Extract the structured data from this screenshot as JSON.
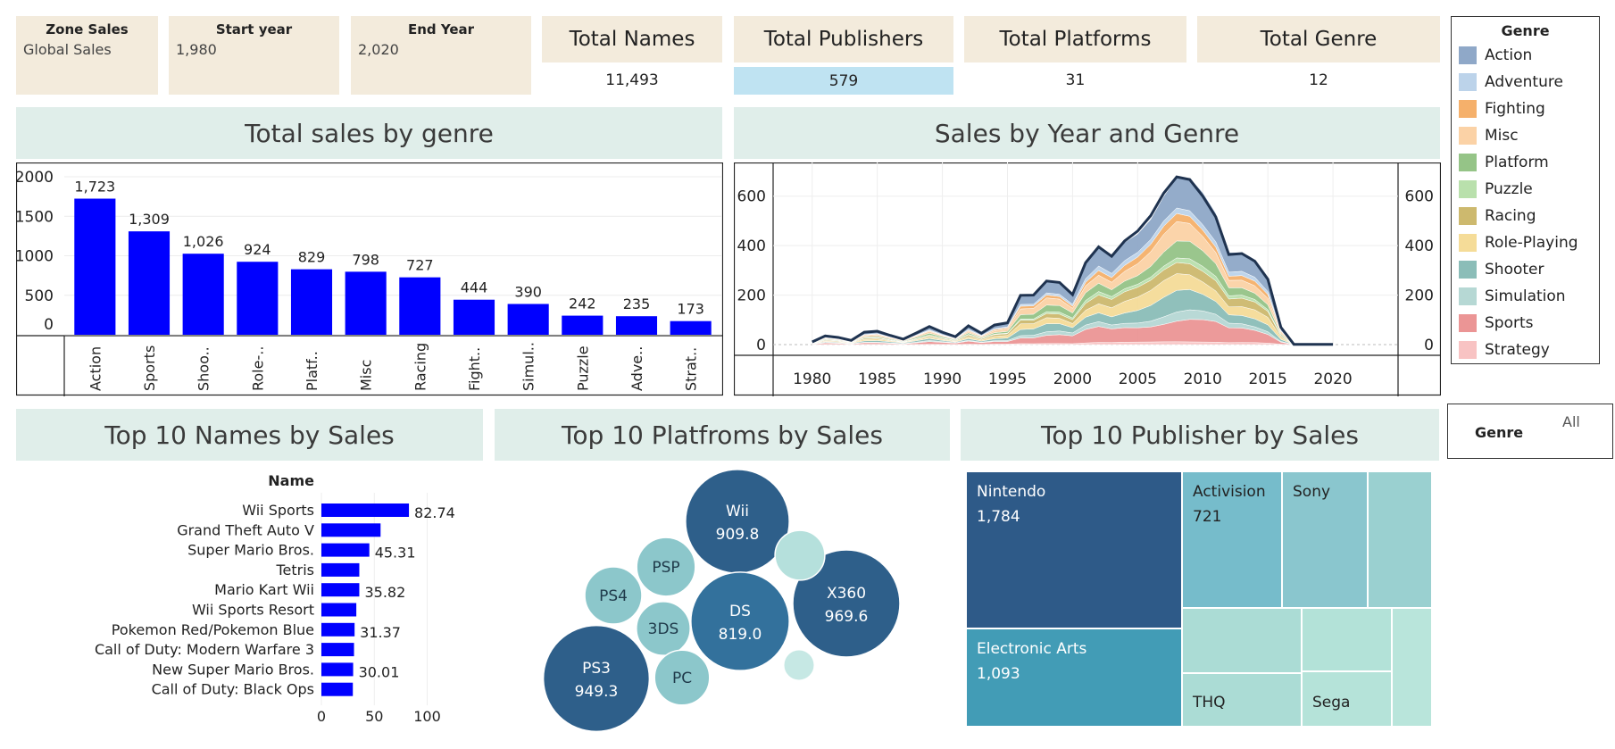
{
  "filters": [
    {
      "title": "Zone Sales",
      "value": "Global Sales"
    },
    {
      "title": "Start year",
      "value": "1,980"
    },
    {
      "title": "End Year",
      "value": "2,020"
    }
  ],
  "kpis": [
    {
      "title": "Total Names",
      "value": "11,493"
    },
    {
      "title": "Total Publishers",
      "value": "579"
    },
    {
      "title": "Total Platforms",
      "value": "31"
    },
    {
      "title": "Total Genre",
      "value": "12"
    }
  ],
  "legend": {
    "title": "Genre",
    "items": [
      {
        "label": "Action",
        "color": "#8fa8c8"
      },
      {
        "label": "Adventure",
        "color": "#bcd3ea"
      },
      {
        "label": "Fighting",
        "color": "#f5b06b"
      },
      {
        "label": "Misc",
        "color": "#fbd2a6"
      },
      {
        "label": "Platform",
        "color": "#95c487"
      },
      {
        "label": "Puzzle",
        "color": "#b9e0ac"
      },
      {
        "label": "Racing",
        "color": "#cdb96e"
      },
      {
        "label": "Role-Playing",
        "color": "#f5dc98"
      },
      {
        "label": "Shooter",
        "color": "#8bbdb8"
      },
      {
        "label": "Simulation",
        "color": "#b6d8d4"
      },
      {
        "label": "Sports",
        "color": "#eb9595"
      },
      {
        "label": "Strategy",
        "color": "#f8c3c3"
      }
    ]
  },
  "genre_filter": {
    "label": "Genre",
    "value": "All"
  },
  "titles": {
    "genre_chart": "Total sales by genre",
    "year_chart": "Sales by Year and Genre",
    "names_chart": "Top 10 Names by Sales",
    "platforms_chart": "Top 10 Platfroms by Sales",
    "publisher_chart": "Top 10 Publisher by Sales"
  },
  "chart_data": [
    {
      "type": "bar",
      "title": "Total sales by genre",
      "categories": [
        "Action",
        "Sports",
        "Shoo..",
        "Role-..",
        "Platf..",
        "Misc",
        "Racing",
        "Fight..",
        "Simul..",
        "Puzzle",
        "Adve..",
        "Strat.."
      ],
      "values": [
        1723,
        1309,
        1026,
        924,
        829,
        798,
        727,
        444,
        390,
        242,
        235,
        173
      ],
      "value_labels": [
        "1,723",
        "1,309",
        "1,026",
        "924",
        "829",
        "798",
        "727",
        "444",
        "390",
        "242",
        "235",
        "173"
      ],
      "yticks": [
        0,
        500,
        1000,
        1500,
        2000
      ],
      "ylim": [
        0,
        2000
      ],
      "bar_color": "#0000ff"
    },
    {
      "type": "area",
      "title": "Sales by Year and Genre",
      "x": [
        1980,
        1981,
        1982,
        1983,
        1984,
        1985,
        1986,
        1987,
        1988,
        1989,
        1990,
        1991,
        1992,
        1993,
        1994,
        1995,
        1996,
        1997,
        1998,
        1999,
        2000,
        2001,
        2002,
        2003,
        2004,
        2005,
        2006,
        2007,
        2008,
        2009,
        2010,
        2011,
        2012,
        2013,
        2014,
        2015,
        2016,
        2017,
        2018,
        2019,
        2020
      ],
      "totals": [
        11,
        35,
        29,
        17,
        50,
        54,
        37,
        22,
        47,
        73,
        50,
        32,
        76,
        46,
        79,
        88,
        199,
        200,
        257,
        251,
        202,
        331,
        395,
        357,
        419,
        459,
        521,
        612,
        678,
        667,
        600,
        516,
        364,
        368,
        337,
        264,
        70,
        1,
        1,
        1,
        1
      ],
      "shares": {
        "Action": 0.19,
        "Adventure": 0.04,
        "Fighting": 0.05,
        "Misc": 0.1,
        "Platform": 0.09,
        "Puzzle": 0.03,
        "Racing": 0.08,
        "Role-Playing": 0.1,
        "Shooter": 0.11,
        "Simulation": 0.05,
        "Sports": 0.14,
        "Strategy": 0.02
      },
      "xticks": [
        1980,
        1985,
        1990,
        1995,
        2000,
        2005,
        2010,
        2015,
        2020
      ],
      "yticks": [
        0,
        200,
        400,
        600
      ],
      "ylim": [
        0,
        700
      ],
      "xlim": [
        1977,
        2025
      ]
    },
    {
      "type": "bar",
      "orientation": "horizontal",
      "title": "Top 10 Names by Sales",
      "header": "Name",
      "categories": [
        "Wii Sports",
        "Grand Theft Auto V",
        "Super Mario Bros.",
        "Tetris",
        "Mario Kart Wii",
        "Wii Sports Resort",
        "Pokemon Red/Pokemon Blue",
        "Call of Duty: Modern Warfare 3",
        "New Super Mario Bros.",
        "Call of Duty: Black Ops"
      ],
      "values": [
        82.74,
        55.92,
        45.31,
        35.84,
        35.82,
        33.0,
        31.37,
        30.83,
        30.01,
        29.72
      ],
      "value_labels": [
        "82.74",
        "",
        "45.31",
        "",
        "35.82",
        "",
        "31.37",
        "",
        "30.01",
        ""
      ],
      "xticks": [
        0,
        50,
        100
      ],
      "xlim": [
        0,
        135
      ],
      "bar_color": "#0000ff"
    },
    {
      "type": "bubble",
      "title": "Top 10 Platfroms by Sales",
      "bubbles": [
        {
          "name": "Wii",
          "value": 909.8,
          "label": "909.8",
          "color": "#2e5f8a"
        },
        {
          "name": "X360",
          "value": 969.6,
          "label": "969.6",
          "color": "#2e5f8a"
        },
        {
          "name": "DS",
          "value": 819.0,
          "label": "819.0",
          "color": "#33719c"
        },
        {
          "name": "PS3",
          "value": 949.3,
          "label": "949.3",
          "color": "#2e5f8a"
        },
        {
          "name": "PSP",
          "value": 290,
          "label": "",
          "color": "#8cc7cb"
        },
        {
          "name": "PS4",
          "value": 275,
          "label": "",
          "color": "#8cc7cb"
        },
        {
          "name": "3DS",
          "value": 245,
          "label": "",
          "color": "#8cc7cb"
        },
        {
          "name": "PC",
          "value": 255,
          "label": "",
          "color": "#8cc7cb"
        },
        {
          "name": "",
          "value": 210,
          "label": "",
          "color": "#b5e0dc"
        },
        {
          "name": "",
          "value": 80,
          "label": "",
          "color": "#c6e8e4"
        }
      ]
    },
    {
      "type": "treemap",
      "title": "Top 10 Publisher by Sales",
      "cells": [
        {
          "name": "Nintendo",
          "value": 1784,
          "label": "1,784",
          "color": "#2e5a88"
        },
        {
          "name": "Electronic Arts",
          "value": 1093,
          "label": "1,093",
          "color": "#429cb6"
        },
        {
          "name": "Activision",
          "value": 721,
          "label": "721",
          "color": "#76bccb"
        },
        {
          "name": "Sony",
          "value": 607,
          "label": "",
          "color": "#8ac6ce"
        },
        {
          "name": "",
          "value": 474,
          "label": "",
          "color": "#9ad0d0"
        },
        {
          "name": "",
          "value": 470,
          "label": "",
          "color": "#abdcd5"
        },
        {
          "name": "THQ",
          "value": 340,
          "label": "",
          "color": "#abdcd5"
        },
        {
          "name": "",
          "value": 330,
          "label": "",
          "color": "#b3e2d8"
        },
        {
          "name": "Sega",
          "value": 273,
          "label": "",
          "color": "#b5e3d9"
        },
        {
          "name": "",
          "value": 255,
          "label": "",
          "color": "#b9e5db"
        }
      ]
    }
  ]
}
